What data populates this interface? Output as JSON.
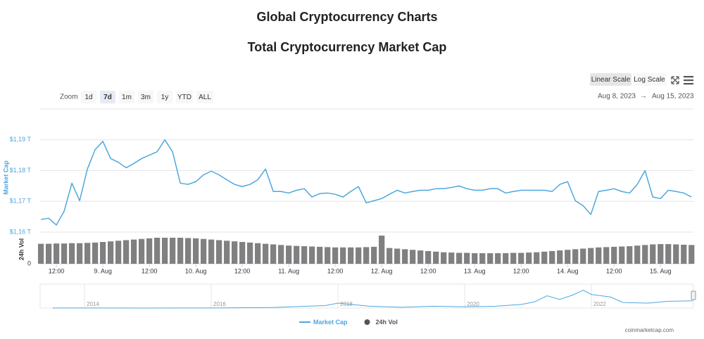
{
  "header": {
    "title": "Global Cryptocurrency Charts",
    "subtitle": "Total Cryptocurrency Market Cap"
  },
  "controls": {
    "scale_buttons": [
      {
        "label": "Linear Scale",
        "selected": true
      },
      {
        "label": "Log Scale",
        "selected": false
      }
    ],
    "zoom_label": "Zoom",
    "zoom_buttons": [
      {
        "label": "1d",
        "selected": false
      },
      {
        "label": "7d",
        "selected": true
      },
      {
        "label": "1m",
        "selected": false
      },
      {
        "label": "3m",
        "selected": false
      },
      {
        "label": "1y",
        "selected": false
      },
      {
        "label": "YTD",
        "selected": false
      },
      {
        "label": "ALL",
        "selected": false
      }
    ],
    "date_range": {
      "from": "Aug 8, 2023",
      "separator": "→",
      "to": "Aug 15, 2023"
    }
  },
  "credit": "coinmarketcap.com",
  "chart_data": [
    {
      "type": "line",
      "ylabel": "Market Cap",
      "y2label": "24h Vol",
      "x": [
        "2023-08-08T08:00",
        "2023-08-08T10:00",
        "2023-08-08T12:00",
        "2023-08-08T14:00",
        "2023-08-08T16:00",
        "2023-08-08T18:00",
        "2023-08-08T20:00",
        "2023-08-08T22:00",
        "2023-08-09T00:00",
        "2023-08-09T02:00",
        "2023-08-09T04:00",
        "2023-08-09T06:00",
        "2023-08-09T08:00",
        "2023-08-09T10:00",
        "2023-08-09T12:00",
        "2023-08-09T14:00",
        "2023-08-09T16:00",
        "2023-08-09T18:00",
        "2023-08-09T20:00",
        "2023-08-09T22:00",
        "2023-08-10T00:00",
        "2023-08-10T02:00",
        "2023-08-10T04:00",
        "2023-08-10T06:00",
        "2023-08-10T08:00",
        "2023-08-10T10:00",
        "2023-08-10T12:00",
        "2023-08-10T14:00",
        "2023-08-10T16:00",
        "2023-08-10T18:00",
        "2023-08-10T20:00",
        "2023-08-10T22:00",
        "2023-08-11T00:00",
        "2023-08-11T02:00",
        "2023-08-11T04:00",
        "2023-08-11T06:00",
        "2023-08-11T08:00",
        "2023-08-11T10:00",
        "2023-08-11T12:00",
        "2023-08-11T14:00",
        "2023-08-11T16:00",
        "2023-08-11T18:00",
        "2023-08-11T20:00",
        "2023-08-11T22:00",
        "2023-08-12T00:00",
        "2023-08-12T02:00",
        "2023-08-12T04:00",
        "2023-08-12T06:00",
        "2023-08-12T08:00",
        "2023-08-12T10:00",
        "2023-08-12T12:00",
        "2023-08-12T14:00",
        "2023-08-12T16:00",
        "2023-08-12T18:00",
        "2023-08-12T20:00",
        "2023-08-12T22:00",
        "2023-08-13T00:00",
        "2023-08-13T02:00",
        "2023-08-13T04:00",
        "2023-08-13T06:00",
        "2023-08-13T08:00",
        "2023-08-13T10:00",
        "2023-08-13T12:00",
        "2023-08-13T14:00",
        "2023-08-13T16:00",
        "2023-08-13T18:00",
        "2023-08-13T20:00",
        "2023-08-13T22:00",
        "2023-08-14T00:00",
        "2023-08-14T02:00",
        "2023-08-14T04:00",
        "2023-08-14T06:00",
        "2023-08-14T08:00",
        "2023-08-14T10:00",
        "2023-08-14T12:00",
        "2023-08-14T14:00",
        "2023-08-14T16:00",
        "2023-08-14T18:00",
        "2023-08-14T20:00",
        "2023-08-14T22:00",
        "2023-08-15T00:00",
        "2023-08-15T02:00",
        "2023-08-15T04:00",
        "2023-08-15T06:00",
        "2023-08-15T08:00"
      ],
      "series": [
        {
          "name": "Market Cap",
          "color": "#4ea7dd",
          "values": [
            1.1641,
            1.1645,
            1.1623,
            1.1668,
            1.1759,
            1.1702,
            1.1805,
            1.1868,
            1.1895,
            1.1839,
            1.1827,
            1.1809,
            1.1823,
            1.1839,
            1.185,
            1.1861,
            1.19,
            1.1861,
            1.1759,
            1.1755,
            1.1764,
            1.1786,
            1.1798,
            1.1786,
            1.177,
            1.1755,
            1.1748,
            1.1755,
            1.177,
            1.1805,
            1.1732,
            1.1732,
            1.1727,
            1.1736,
            1.1741,
            1.1714,
            1.1725,
            1.1727,
            1.1723,
            1.1714,
            1.1732,
            1.1748,
            1.1695,
            1.1702,
            1.1709,
            1.1723,
            1.1736,
            1.1727,
            1.1732,
            1.1736,
            1.1736,
            1.1741,
            1.1741,
            1.1745,
            1.175,
            1.1741,
            1.1736,
            1.1736,
            1.1741,
            1.1741,
            1.1727,
            1.1732,
            1.1736,
            1.1736,
            1.1736,
            1.1736,
            1.1732,
            1.1755,
            1.1764,
            1.1702,
            1.1686,
            1.1657,
            1.1732,
            1.1736,
            1.1741,
            1.1732,
            1.1727,
            1.1755,
            1.18,
            1.1714,
            1.1709,
            1.1736,
            1.1732,
            1.1727,
            1.1714
          ]
        },
        {
          "name": "24h Vol",
          "color": "#555555",
          "type": "bar",
          "axis": "y2",
          "values": [
            66,
            66,
            67,
            67,
            68,
            68,
            69,
            70,
            72,
            74,
            76,
            78,
            80,
            82,
            84,
            86,
            86,
            86,
            86,
            85,
            84,
            82,
            80,
            78,
            76,
            74,
            72,
            70,
            68,
            66,
            64,
            62,
            60,
            59,
            58,
            57,
            56,
            55,
            54,
            54,
            54,
            54,
            55,
            56,
            93,
            52,
            50,
            48,
            46,
            44,
            42,
            40,
            38,
            37,
            36,
            36,
            35,
            35,
            35,
            35,
            35,
            36,
            36,
            37,
            38,
            40,
            42,
            44,
            46,
            48,
            50,
            52,
            54,
            55,
            56,
            57,
            58,
            60,
            62,
            64,
            65,
            65,
            64,
            63,
            62
          ]
        }
      ],
      "xlim": [
        "2023-08-08T07:48",
        "2023-08-15T08:30"
      ],
      "xticks": [
        {
          "value": "2023-08-08T12:00",
          "label": "12:00"
        },
        {
          "value": "2023-08-09T00:00",
          "label": "9. Aug"
        },
        {
          "value": "2023-08-09T12:00",
          "label": "12:00"
        },
        {
          "value": "2023-08-10T00:00",
          "label": "10. Aug"
        },
        {
          "value": "2023-08-10T12:00",
          "label": "12:00"
        },
        {
          "value": "2023-08-11T00:00",
          "label": "11. Aug"
        },
        {
          "value": "2023-08-11T12:00",
          "label": "12:00"
        },
        {
          "value": "2023-08-12T00:00",
          "label": "12. Aug"
        },
        {
          "value": "2023-08-12T12:00",
          "label": "12:00"
        },
        {
          "value": "2023-08-13T00:00",
          "label": "13. Aug"
        },
        {
          "value": "2023-08-13T12:00",
          "label": "12:00"
        },
        {
          "value": "2023-08-14T00:00",
          "label": "14. Aug"
        },
        {
          "value": "2023-08-14T12:00",
          "label": "12:00"
        },
        {
          "value": "2023-08-15T00:00",
          "label": "15. Aug"
        }
      ],
      "ylim": [
        1.16,
        1.2
      ],
      "yticks": [
        {
          "value": 1.16,
          "label": "$1,16 T"
        },
        {
          "value": 1.17,
          "label": "$1,17 T"
        },
        {
          "value": 1.18,
          "label": "$1,18 T"
        },
        {
          "value": 1.19,
          "label": "$1,19 T"
        }
      ],
      "y2lim": [
        0,
        100
      ],
      "y2ticks": [
        0
      ],
      "grid": true,
      "legend": "bottom"
    },
    {
      "type": "line",
      "x": [
        2013.5,
        2014,
        2015,
        2016,
        2017,
        2017.5,
        2017.8,
        2018,
        2018.5,
        2019,
        2019.5,
        2020,
        2020.5,
        2020.9,
        2021.1,
        2021.3,
        2021.5,
        2021.7,
        2021.87,
        2022,
        2022.3,
        2022.5,
        2022.9,
        2023.2,
        2023.6
      ],
      "series": [
        {
          "name": "Market Cap",
          "color": "#4ea7dd",
          "values": [
            0.01,
            0.01,
            0.005,
            0.01,
            0.1,
            0.3,
            0.4,
            0.8,
            0.3,
            0.13,
            0.3,
            0.2,
            0.3,
            0.6,
            1.0,
            2.0,
            1.4,
            2.1,
            2.9,
            2.2,
            1.8,
            0.9,
            0.8,
            1.1,
            1.17
          ]
        }
      ],
      "xlim": [
        2013.3,
        2023.61
      ],
      "xticks": [
        2014,
        2016,
        2018,
        2020,
        2022
      ],
      "ylim": [
        0,
        3.2
      ]
    }
  ]
}
